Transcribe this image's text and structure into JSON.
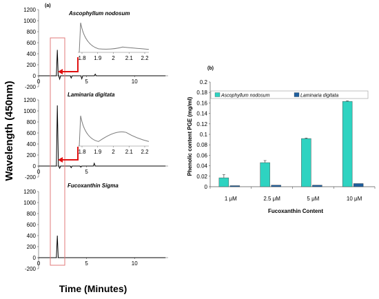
{
  "figure": {
    "left_ylabel": "Wavelength (450nm)",
    "left_xlabel": "Time (Minutes)"
  },
  "panel_a": {
    "label": "(a)",
    "chromatograms": [
      {
        "title": "Ascophyllum nodosum",
        "y_ticks": [
          -200,
          0,
          200,
          400,
          600,
          800,
          1000,
          1200
        ],
        "x_ticks": [
          0,
          5,
          10
        ],
        "xlim": [
          0,
          13.5
        ],
        "ylim": [
          -200,
          1200
        ],
        "peaks": [
          {
            "time": 1.95,
            "height": 470
          },
          {
            "time": 2.2,
            "height": -60
          },
          {
            "time": 3.4,
            "height": -40
          },
          {
            "time": 4.5,
            "height": -55
          },
          {
            "time": 5.9,
            "height": 30
          }
        ],
        "inset": {
          "x_ticks": [
            "1.8",
            "1.9",
            "2",
            "2.1",
            "2.2"
          ]
        }
      },
      {
        "title": "Laminaria digitata",
        "y_ticks": [
          -200,
          0,
          200,
          400,
          600,
          800,
          1000,
          1200
        ],
        "x_ticks": [
          0,
          5
        ],
        "xlim": [
          0,
          13.5
        ],
        "ylim": [
          -200,
          1200
        ],
        "peaks": [
          {
            "time": 1.95,
            "height": 1100
          },
          {
            "time": 2.2,
            "height": -40
          },
          {
            "time": 3.4,
            "height": -30
          },
          {
            "time": 4.4,
            "height": -20
          },
          {
            "time": 5.8,
            "height": 50
          }
        ],
        "inset": {
          "x_ticks": [
            "1.8",
            "1.9",
            "2",
            "2.1",
            "2.2"
          ]
        }
      },
      {
        "title": "Fucoxanthin Sigma",
        "y_ticks": [
          -200,
          0,
          200,
          400,
          600,
          800,
          1000,
          1200
        ],
        "x_ticks": [
          0,
          5,
          10
        ],
        "xlim": [
          0,
          13.5
        ],
        "ylim": [
          -200,
          1200
        ],
        "peaks": [
          {
            "time": 1.95,
            "height": 400
          }
        ]
      }
    ]
  },
  "chart_data": [
    {
      "type": "bar",
      "title": "",
      "label": "(b)",
      "xlabel": "Fucoxanthin Content",
      "ylabel": "Phenolic content PGE (mg/ml)",
      "categories": [
        "1 μM",
        "2.5 μM",
        "5 μM",
        "10 μM"
      ],
      "ylim": [
        0,
        0.2
      ],
      "y_ticks": [
        "0",
        "0.02",
        "0.04",
        "0.06",
        "0.08",
        "0.1",
        "0.12",
        "0.14",
        "0.16",
        "0.18",
        "0.2"
      ],
      "legend_position": "top",
      "series": [
        {
          "name": "Ascophyllum nodosum",
          "color": "#2ed3c1",
          "values": [
            0.017,
            0.046,
            0.092,
            0.163
          ],
          "errors": [
            0.006,
            0.004,
            0.001,
            0.001
          ]
        },
        {
          "name": "Laminaria digitata",
          "color": "#1f5f9e",
          "values": [
            0.002,
            0.003,
            0.003,
            0.006
          ],
          "errors": [
            0,
            0,
            0,
            0
          ]
        }
      ]
    }
  ]
}
